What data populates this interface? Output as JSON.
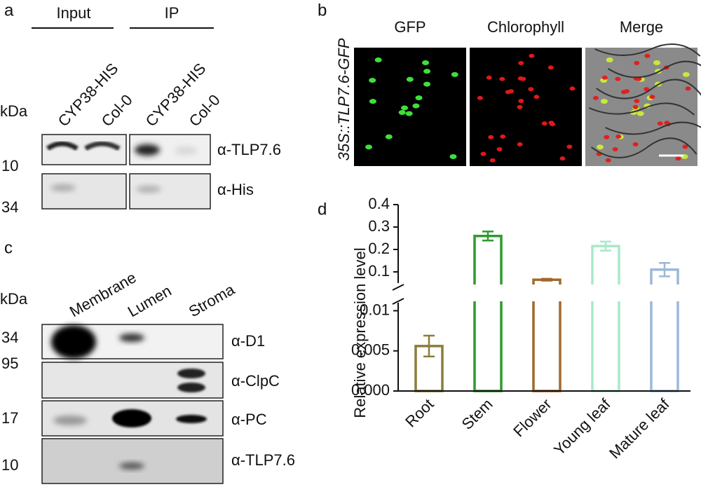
{
  "panels": {
    "a": {
      "label": "a",
      "groups": [
        "Input",
        "IP"
      ],
      "lanes": [
        "CYP38-HIS",
        "Col-0",
        "CYP38-HIS",
        "Col-0"
      ],
      "unit": "kDa",
      "markers": [
        "10",
        "34"
      ],
      "antibodies": [
        "α-TLP7.6",
        "α-His"
      ]
    },
    "b": {
      "label": "b",
      "construct": "35S::TLP7.6-GFP",
      "channels": [
        "GFP",
        "Chlorophyll",
        "Merge"
      ]
    },
    "c": {
      "label": "c",
      "lanes": [
        "Membrane",
        "Lumen",
        "Stroma"
      ],
      "unit": "kDa",
      "markers": [
        "34",
        "95",
        "17",
        "10"
      ],
      "antibodies": [
        "α-D1",
        "α-ClpC",
        "α-PC",
        "α-TLP7.6"
      ]
    },
    "d": {
      "label": "d"
    }
  },
  "chart_data": {
    "type": "bar",
    "y_label": "Relative expression level",
    "categories": [
      "Root",
      "Stem",
      "Flower",
      "Young leaf",
      "Mature leaf"
    ],
    "values": [
      0.0056,
      0.26,
      0.065,
      0.215,
      0.11
    ],
    "errors": [
      0.0013,
      0.02,
      0.004,
      0.02,
      0.03
    ],
    "colors": [
      "#8b7d3a",
      "#2e9a2e",
      "#a0692a",
      "#a8e8c8",
      "#9bb8d8"
    ],
    "ylim": [
      0,
      0.011
    ],
    "yticks": [
      {
        "value": 0,
        "label": "0.000"
      },
      0.005,
      0.01
    ],
    "upper_ylim": [
      0.05,
      0.4
    ],
    "upper_yticks": [
      0.1,
      0.2,
      0.3,
      0.4
    ],
    "axis_break": true
  }
}
